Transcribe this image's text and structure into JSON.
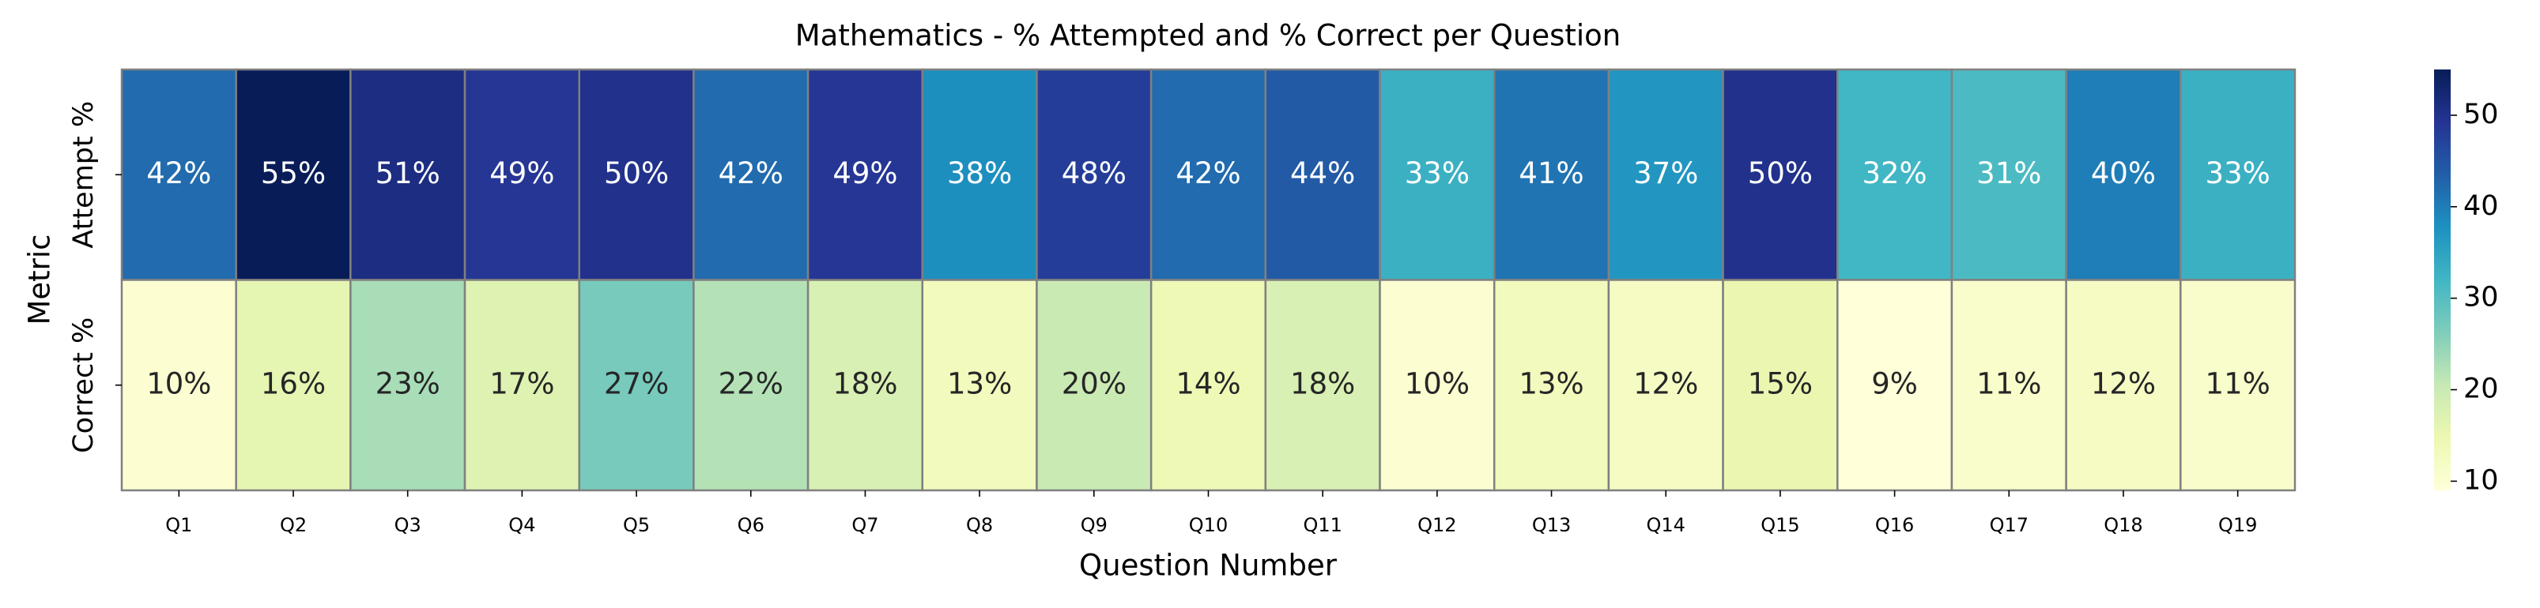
{
  "chart_data": {
    "type": "heatmap",
    "title": "Mathematics - % Attempted and % Correct per Question",
    "x_label": "Question Number",
    "y_label": "Metric",
    "categories": [
      "Q1",
      "Q2",
      "Q3",
      "Q4",
      "Q5",
      "Q6",
      "Q7",
      "Q8",
      "Q9",
      "Q10",
      "Q11",
      "Q12",
      "Q13",
      "Q14",
      "Q15",
      "Q16",
      "Q17",
      "Q18",
      "Q19"
    ],
    "rows": [
      "Attempt %",
      "Correct %"
    ],
    "values": [
      [
        42,
        55,
        51,
        49,
        50,
        42,
        49,
        38,
        48,
        42,
        44,
        33,
        41,
        37,
        50,
        32,
        31,
        40,
        33
      ],
      [
        10,
        16,
        23,
        17,
        27,
        22,
        18,
        13,
        20,
        14,
        18,
        10,
        13,
        12,
        15,
        9,
        11,
        12,
        11
      ]
    ],
    "value_labels": [
      [
        "42%",
        "55%",
        "51%",
        "49%",
        "50%",
        "42%",
        "49%",
        "38%",
        "48%",
        "42%",
        "44%",
        "33%",
        "41%",
        "37%",
        "50%",
        "32%",
        "31%",
        "40%",
        "33%"
      ],
      [
        "10%",
        "16%",
        "23%",
        "17%",
        "27%",
        "22%",
        "18%",
        "13%",
        "20%",
        "14%",
        "18%",
        "10%",
        "13%",
        "12%",
        "15%",
        "9%",
        "11%",
        "12%",
        "11%"
      ]
    ],
    "colorscale": [
      "#ffffd9",
      "#edf8b1",
      "#c7e9b4",
      "#7fcdbb",
      "#41b6c4",
      "#1d91c0",
      "#225ea8",
      "#253494",
      "#081d58"
    ],
    "clim": [
      9,
      55
    ],
    "cticks": [
      10,
      20,
      30,
      40,
      50
    ]
  }
}
